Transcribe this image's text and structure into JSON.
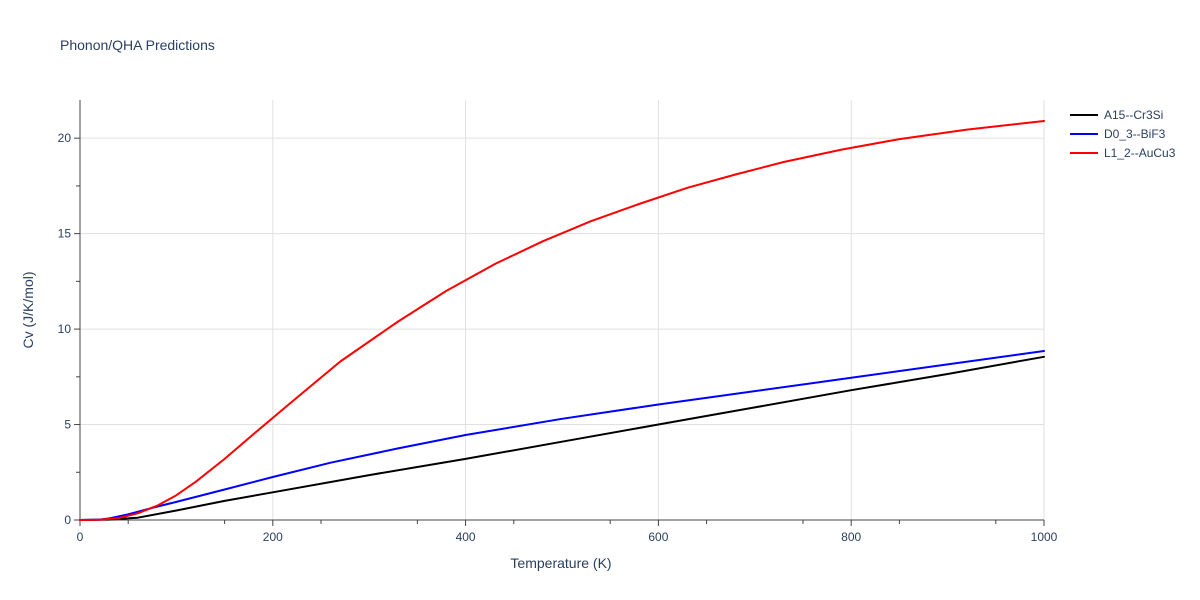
{
  "chart_data": {
    "type": "line",
    "title": "Phonon/QHA Predictions",
    "xlabel": "Temperature (K)",
    "ylabel": "Cv (J/K/mol)",
    "xlim": [
      0,
      1000
    ],
    "ylim": [
      0,
      22
    ],
    "xticks": [
      0,
      200,
      400,
      600,
      800,
      1000
    ],
    "yticks": [
      0,
      5,
      10,
      15,
      20
    ],
    "grid": true,
    "legend_position": "top-right",
    "series": [
      {
        "name": "A15--Cr3Si",
        "color": "#000000",
        "x": [
          0,
          30,
          60,
          100,
          150,
          200,
          300,
          400,
          500,
          600,
          700,
          800,
          900,
          1000
        ],
        "y": [
          0,
          0.02,
          0.12,
          0.5,
          1.0,
          1.45,
          2.35,
          3.2,
          4.1,
          5.0,
          5.9,
          6.8,
          7.65,
          8.55
        ]
      },
      {
        "name": "D0_3--BiF3",
        "color": "#0000ff",
        "x": [
          0,
          20,
          30,
          50,
          80,
          100,
          150,
          200,
          260,
          330,
          400,
          500,
          600,
          700,
          800,
          900,
          1000
        ],
        "y": [
          0,
          0.02,
          0.08,
          0.3,
          0.7,
          0.95,
          1.6,
          2.25,
          3.0,
          3.75,
          4.45,
          5.3,
          6.05,
          6.75,
          7.45,
          8.15,
          8.85
        ]
      },
      {
        "name": "L1_2--AuCu3",
        "color": "#ff0000",
        "x": [
          0,
          20,
          40,
          60,
          80,
          100,
          120,
          150,
          180,
          220,
          270,
          330,
          380,
          430,
          480,
          530,
          580,
          630,
          680,
          730,
          790,
          850,
          920,
          1000
        ],
        "y": [
          0,
          0.01,
          0.1,
          0.35,
          0.75,
          1.3,
          2.0,
          3.2,
          4.5,
          6.2,
          8.3,
          10.4,
          12.0,
          13.4,
          14.6,
          15.65,
          16.55,
          17.4,
          18.1,
          18.75,
          19.4,
          19.95,
          20.45,
          20.9
        ]
      }
    ]
  }
}
